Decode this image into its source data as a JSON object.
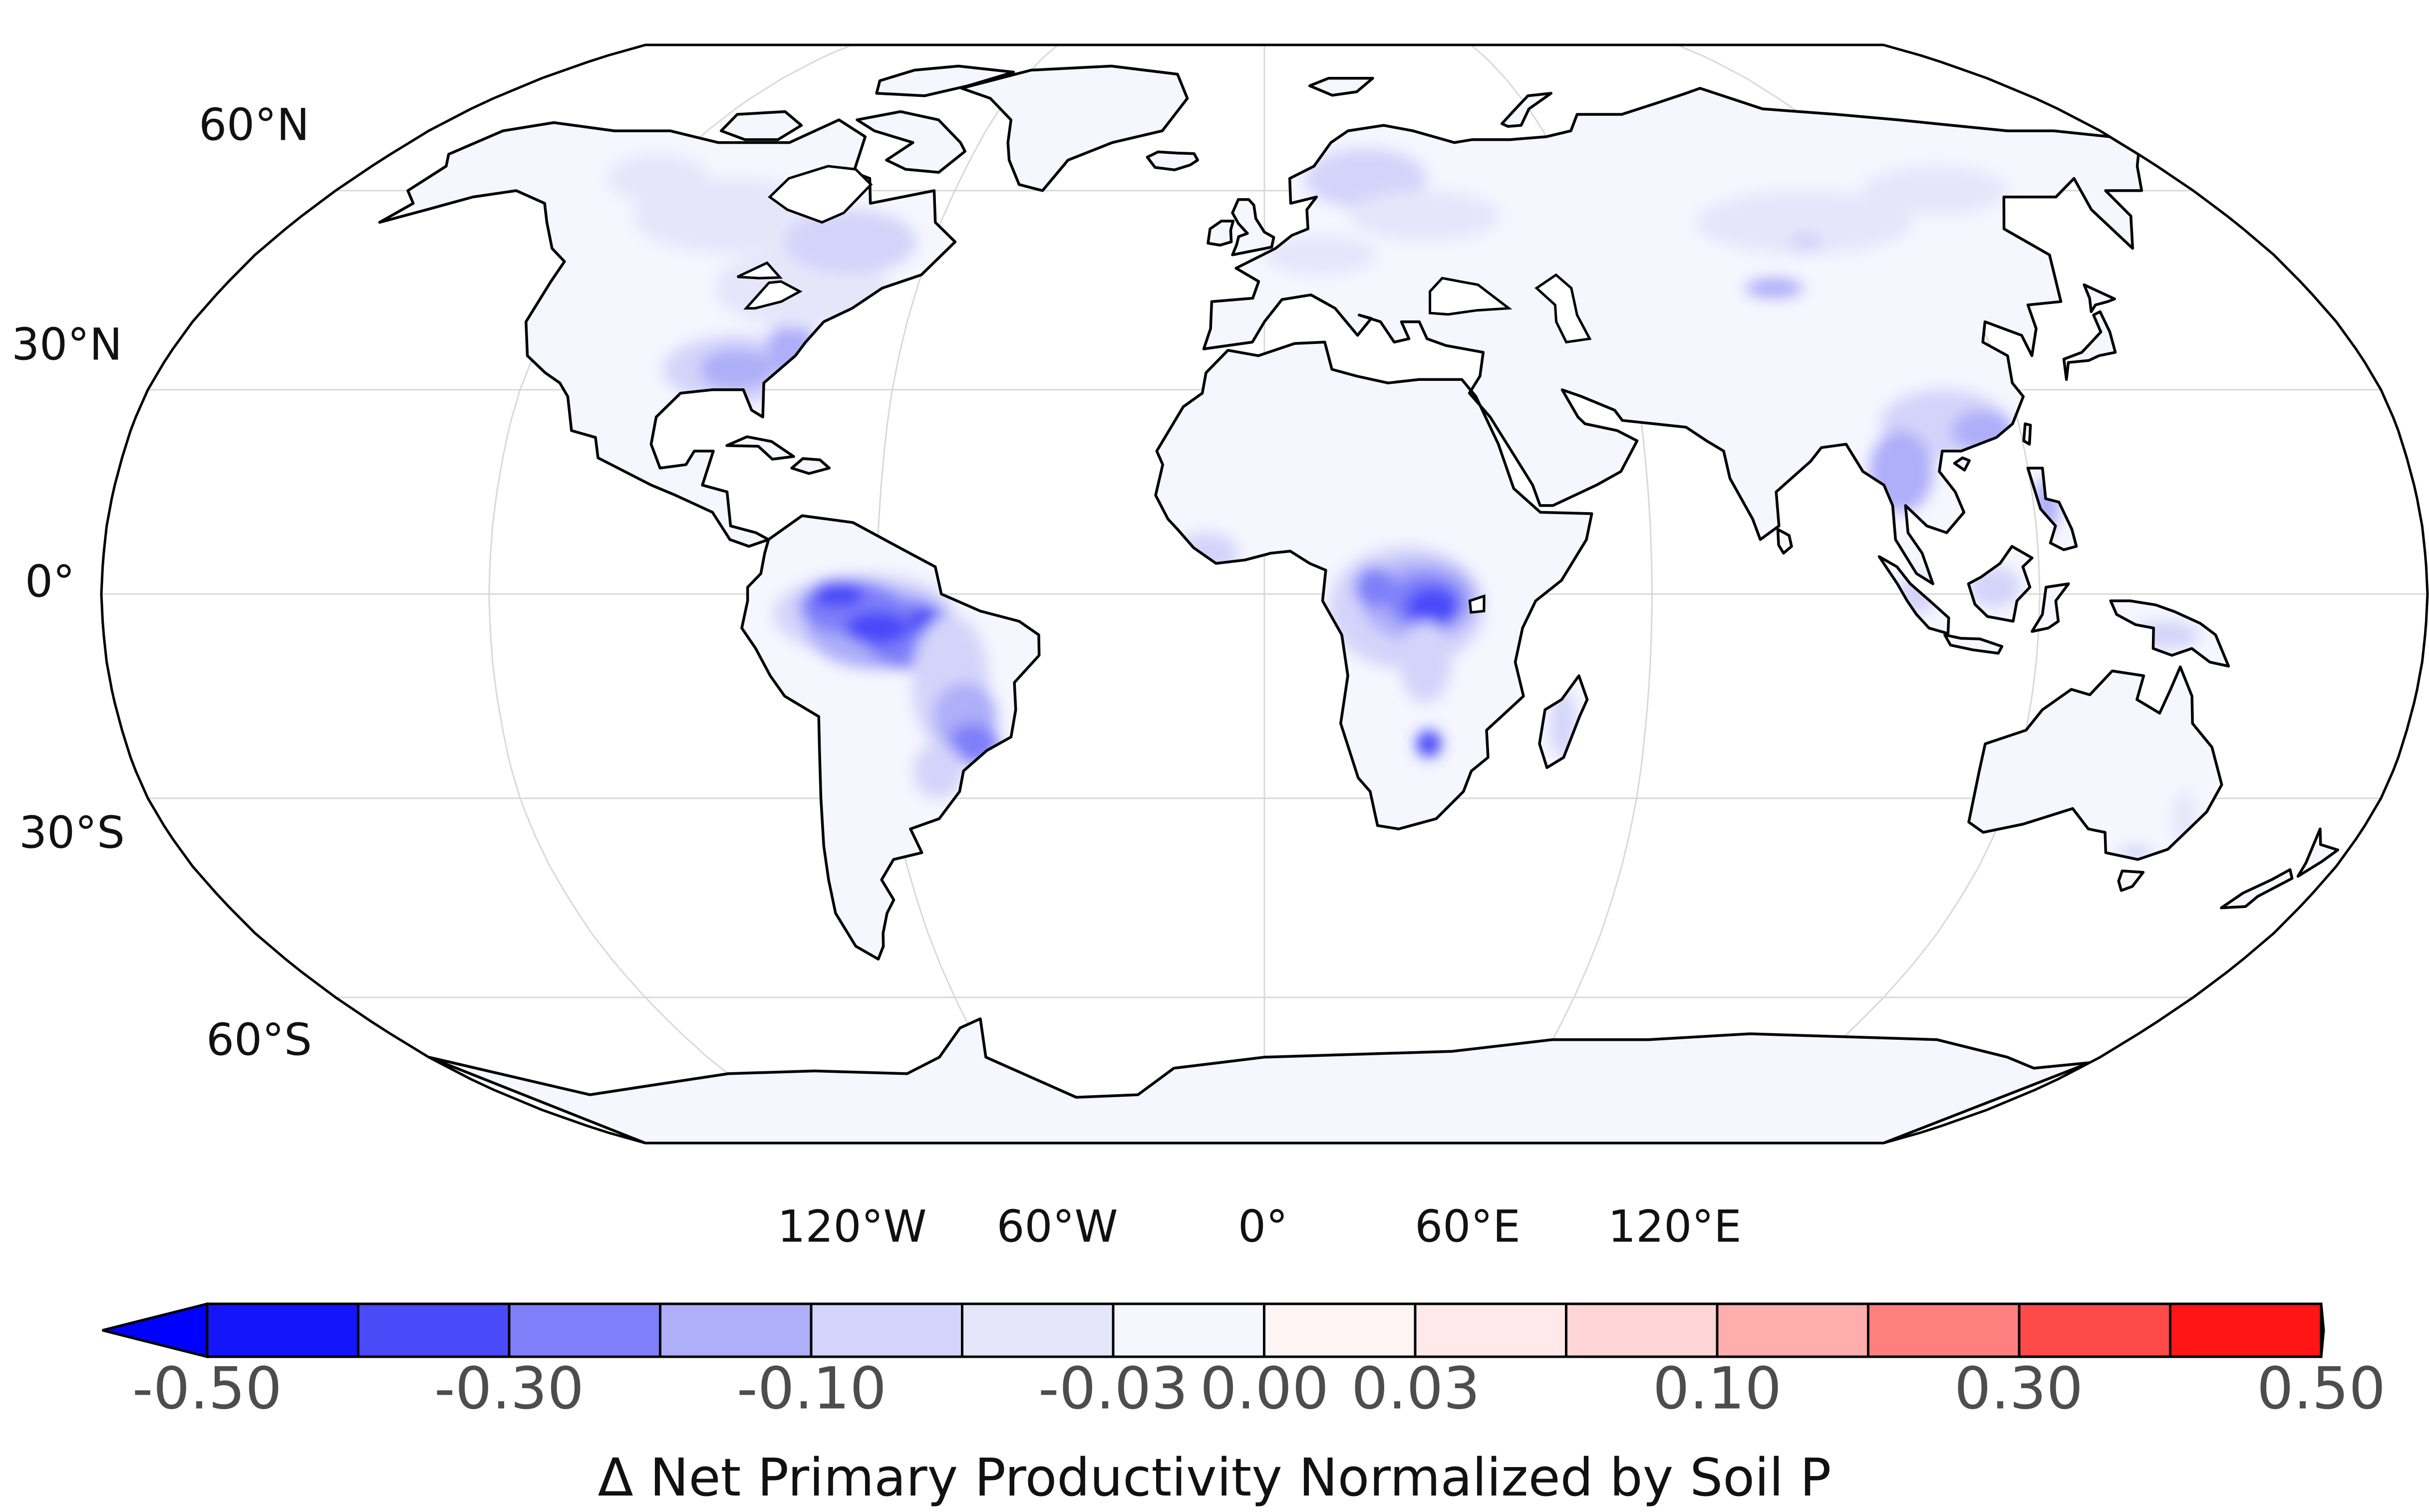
{
  "map": {
    "projection": "Robinson",
    "ocean_color": "#ffffff",
    "land_base_color": "#f5f6fe",
    "coastline_color": "#000000",
    "graticule_color": "#d9d9d9",
    "lat_labels": [
      "60°N",
      "30°N",
      "0°",
      "30°S",
      "60°S"
    ],
    "lon_labels": [
      "120°W",
      "60°W",
      "0°",
      "60°E",
      "120°E"
    ]
  },
  "colorbar": {
    "title": "Δ Net Primary Productivity Normalized by Soil P",
    "tick_labels": [
      "-0.50",
      "-0.30",
      "-0.10",
      "-0.03",
      "0.00",
      "0.03",
      "0.10",
      "0.30",
      "0.50"
    ],
    "levels": [
      -0.5,
      -0.4,
      -0.3,
      -0.2,
      -0.1,
      -0.05,
      -0.03,
      0.0,
      0.03,
      0.05,
      0.1,
      0.2,
      0.3,
      0.4,
      0.5
    ],
    "colors": [
      "#1515fc",
      "#4a4af9",
      "#7f7ff9",
      "#aeaef9",
      "#d4d4fa",
      "#e6e6fb",
      "#f5f6fe",
      "#fff5f5",
      "#ffe9e9",
      "#ffd5d5",
      "#ffaeae",
      "#ff7f7f",
      "#ff4a4a",
      "#ff1515"
    ],
    "under_color": "#0000ff",
    "over_color": "#ff0000",
    "extend": "both"
  }
}
